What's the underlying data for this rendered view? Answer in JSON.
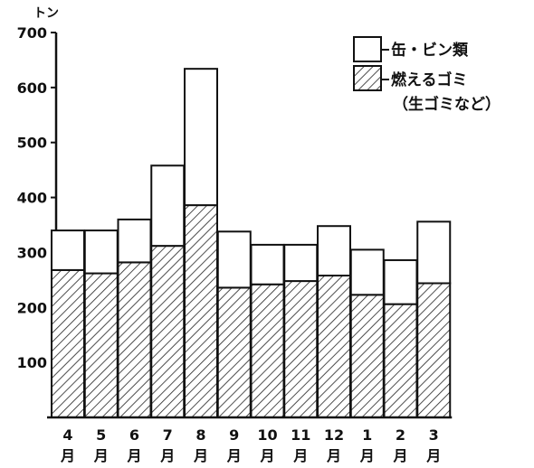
{
  "chart_data": {
    "type": "bar",
    "stacked": true,
    "unit_label": "トン",
    "categories": [
      {
        "top": "4",
        "bottom": "月"
      },
      {
        "top": "5",
        "bottom": "月"
      },
      {
        "top": "6",
        "bottom": "月"
      },
      {
        "top": "7",
        "bottom": "月"
      },
      {
        "top": "8",
        "bottom": "月"
      },
      {
        "top": "9",
        "bottom": "月"
      },
      {
        "top": "10",
        "bottom": "月"
      },
      {
        "top": "11",
        "bottom": "月"
      },
      {
        "top": "12",
        "bottom": "月"
      },
      {
        "top": "1",
        "bottom": "月"
      },
      {
        "top": "2",
        "bottom": "月"
      },
      {
        "top": "3",
        "bottom": "月"
      }
    ],
    "series": [
      {
        "name": "燃えるゴミ",
        "name_note": "（生ゴミなど）",
        "pattern": "hatched",
        "values": [
          268,
          262,
          282,
          312,
          386,
          236,
          242,
          248,
          258,
          223,
          206,
          244
        ]
      },
      {
        "name": "缶・ビン類",
        "pattern": "white",
        "values": [
          72,
          78,
          78,
          146,
          248,
          102,
          72,
          66,
          90,
          82,
          80,
          112
        ]
      }
    ],
    "totals": [
      340,
      340,
      360,
      458,
      634,
      338,
      314,
      314,
      348,
      305,
      286,
      356
    ],
    "ylim": [
      0,
      700
    ],
    "yticks": [
      100,
      200,
      300,
      400,
      500,
      600,
      700
    ],
    "grid": false,
    "legend_position": "top-right",
    "colors": {
      "ink": "#111111",
      "fill_white": "#ffffff"
    }
  }
}
